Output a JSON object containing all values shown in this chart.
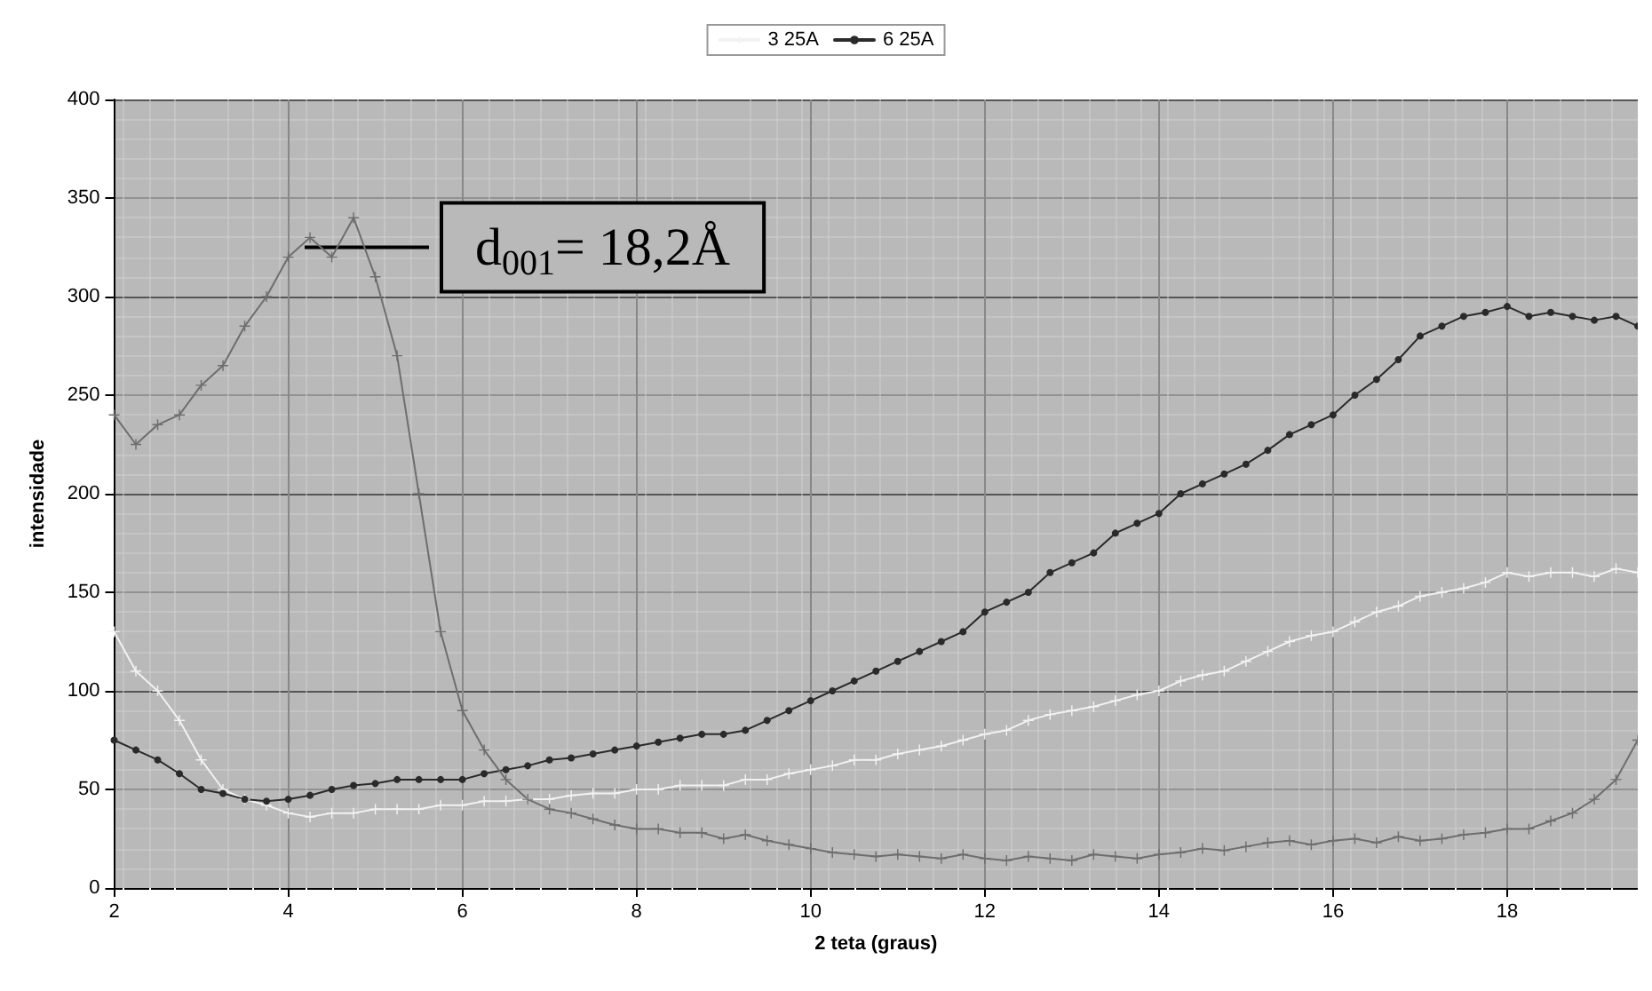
{
  "chart_data": {
    "type": "line",
    "xlabel": "2 teta (graus)",
    "ylabel": "intensidade",
    "x": [
      2,
      2.25,
      2.5,
      2.75,
      3,
      3.25,
      3.5,
      3.75,
      4,
      4.25,
      4.5,
      4.75,
      5,
      5.25,
      5.5,
      5.75,
      6,
      6.25,
      6.5,
      6.75,
      7,
      7.25,
      7.5,
      7.75,
      8,
      8.25,
      8.5,
      8.75,
      9,
      9.25,
      9.5,
      9.75,
      10,
      10.25,
      10.5,
      10.75,
      11,
      11.25,
      11.5,
      11.75,
      12,
      12.25,
      12.5,
      12.75,
      13,
      13.25,
      13.5,
      13.75,
      14,
      14.25,
      14.5,
      14.75,
      15,
      15.25,
      15.5,
      15.75,
      16,
      16.25,
      16.5,
      16.75,
      17,
      17.25,
      17.5,
      17.75,
      18,
      18.25,
      18.5,
      18.75,
      19,
      19.25,
      19.5
    ],
    "series": [
      {
        "name": "3 25A",
        "color": "#f2f2f2",
        "marker": "cross",
        "values": [
          130,
          110,
          100,
          85,
          65,
          50,
          45,
          42,
          38,
          36,
          38,
          38,
          40,
          40,
          40,
          42,
          42,
          44,
          44,
          45,
          45,
          47,
          48,
          48,
          50,
          50,
          52,
          52,
          52,
          55,
          55,
          58,
          60,
          62,
          65,
          65,
          68,
          70,
          72,
          75,
          78,
          80,
          85,
          88,
          90,
          92,
          95,
          98,
          100,
          105,
          108,
          110,
          115,
          120,
          125,
          128,
          130,
          135,
          140,
          143,
          148,
          150,
          152,
          155,
          160,
          158,
          160,
          160,
          158,
          162,
          160
        ]
      },
      {
        "name": "6 25A",
        "color": "#2a2a2a",
        "marker": "circle",
        "values": [
          75,
          70,
          65,
          58,
          50,
          48,
          45,
          44,
          45,
          47,
          50,
          52,
          53,
          55,
          55,
          55,
          55,
          58,
          60,
          62,
          65,
          66,
          68,
          70,
          72,
          74,
          76,
          78,
          78,
          80,
          85,
          90,
          95,
          100,
          105,
          110,
          115,
          120,
          125,
          130,
          140,
          145,
          150,
          160,
          165,
          170,
          180,
          185,
          190,
          200,
          205,
          210,
          215,
          222,
          230,
          235,
          240,
          250,
          258,
          268,
          280,
          285,
          290,
          292,
          295,
          290,
          292,
          290,
          288,
          290,
          285
        ]
      },
      {
        "color": "#6e6e6e",
        "marker": "cross",
        "values": [
          240,
          225,
          235,
          240,
          255,
          265,
          285,
          300,
          320,
          330,
          320,
          340,
          310,
          270,
          200,
          130,
          90,
          70,
          55,
          45,
          40,
          38,
          35,
          32,
          30,
          30,
          28,
          28,
          25,
          27,
          24,
          22,
          20,
          18,
          17,
          16,
          17,
          16,
          15,
          17,
          15,
          14,
          16,
          15,
          14,
          17,
          16,
          15,
          17,
          18,
          20,
          19,
          21,
          23,
          24,
          22,
          24,
          25,
          23,
          26,
          24,
          25,
          27,
          28,
          30,
          30,
          34,
          38,
          45,
          55,
          75
        ]
      }
    ],
    "xlim": [
      2,
      19.5
    ],
    "xticks": [
      2,
      4,
      6,
      8,
      10,
      12,
      14,
      16,
      18
    ],
    "ylim": [
      0,
      400
    ],
    "yticks": [
      0,
      50,
      100,
      150,
      200,
      250,
      300,
      350,
      400
    ],
    "grid": true,
    "legend": "top",
    "annotations": [
      {
        "text": "d$_{001}$= 18,2Å",
        "x": 4.8,
        "y": 325
      }
    ]
  }
}
